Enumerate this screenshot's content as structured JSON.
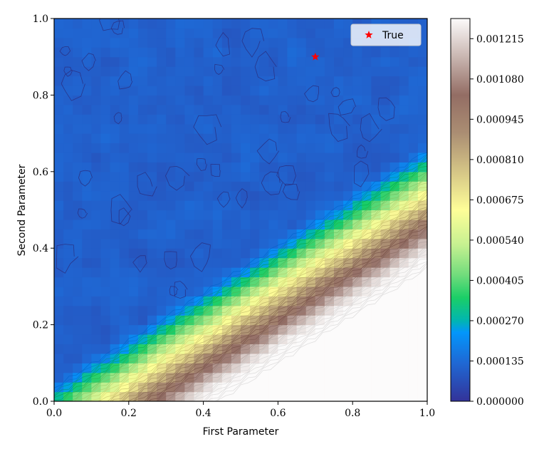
{
  "chart_data": {
    "type": "heatmap",
    "xlabel": "First Parameter",
    "ylabel": "Second Parameter",
    "xlim": [
      0.0,
      1.0
    ],
    "ylim": [
      0.0,
      1.0
    ],
    "x_ticks": [
      "0.0",
      "0.2",
      "0.4",
      "0.6",
      "0.8",
      "1.0"
    ],
    "y_ticks": [
      "0.0",
      "0.2",
      "0.4",
      "0.6",
      "0.8",
      "1.0"
    ],
    "colormap": "terrain",
    "colorbar": {
      "range": [
        0.0,
        0.0012825
      ],
      "ticks": [
        "0.000000",
        "0.000135",
        "0.000270",
        "0.000405",
        "0.000540",
        "0.000675",
        "0.000810",
        "0.000945",
        "0.001080",
        "0.001215"
      ],
      "tick_values": [
        0.0,
        0.000135,
        0.00027,
        0.000405,
        0.00054,
        0.000675,
        0.00081,
        0.000945,
        0.00108,
        0.001215
      ]
    },
    "marker": {
      "name": "True",
      "x": 0.7,
      "y": 0.9,
      "symbol": "star",
      "color": "#ff0000"
    },
    "legend": {
      "position": "upper-right",
      "entries": [
        "True"
      ]
    }
  },
  "colors": {
    "background": "#ffffff",
    "frame": "#000000",
    "marker": "#ff0000"
  }
}
